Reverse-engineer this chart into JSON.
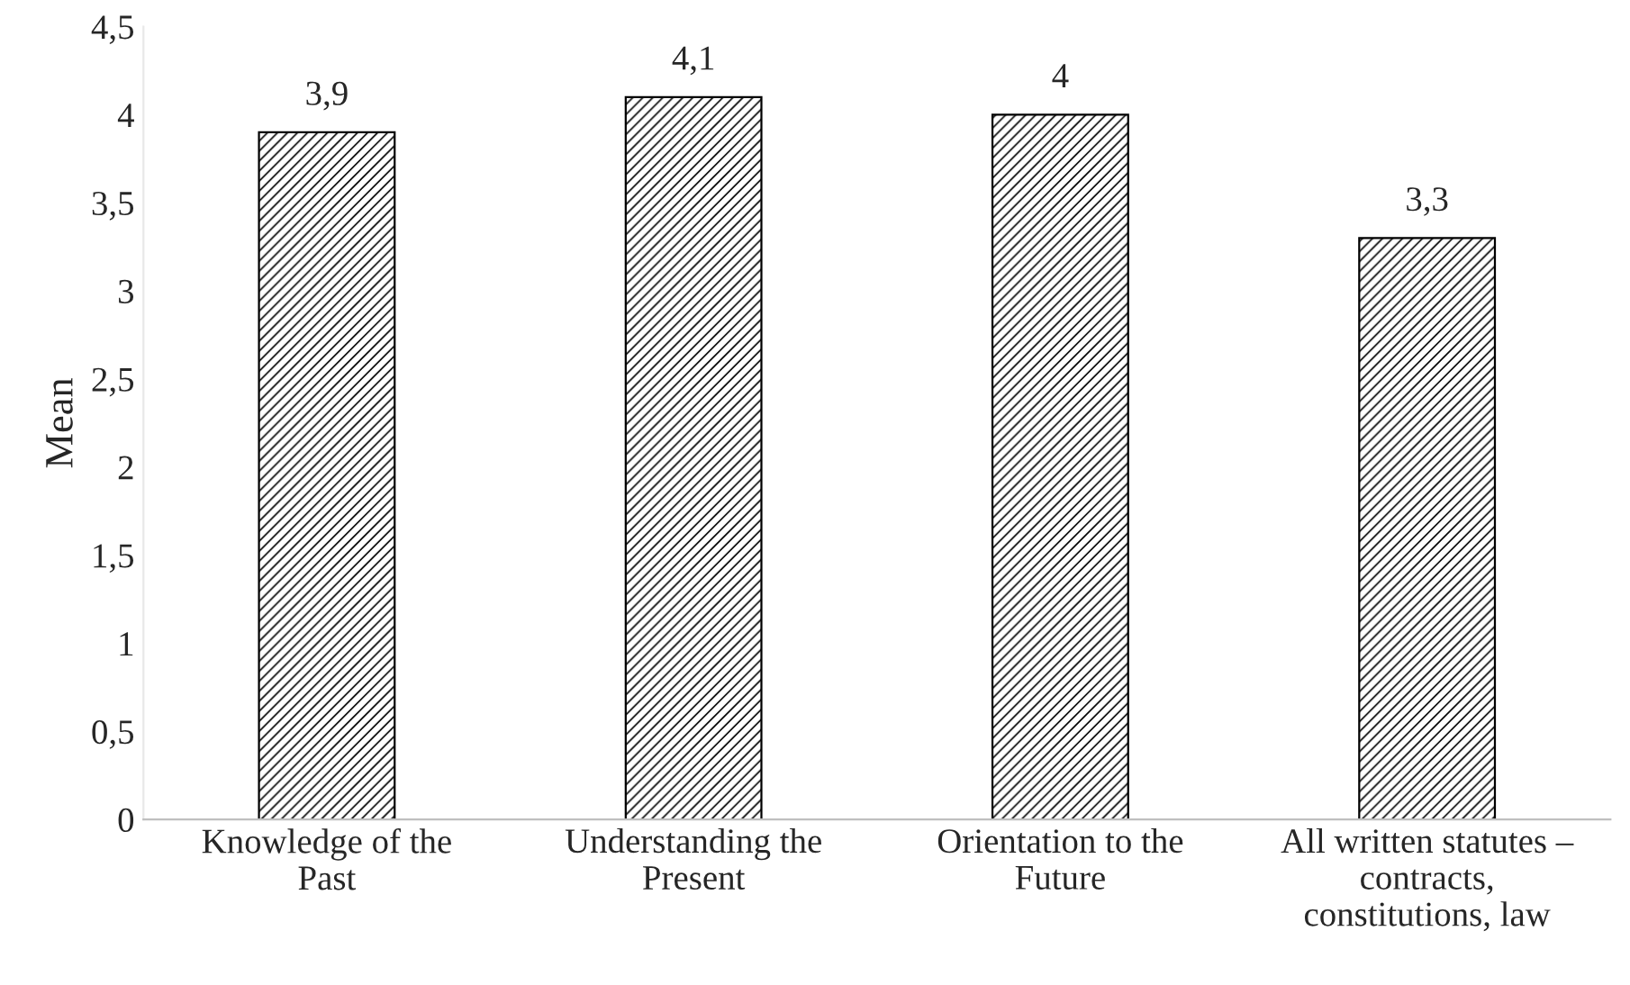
{
  "chart_data": {
    "type": "bar",
    "ylabel": "Mean",
    "categories": [
      "Knowledge of the\nPast",
      "Understanding the\nPresent",
      "Orientation to the\nFuture",
      "All written statutes –\ncontracts,\nconstitutions, law"
    ],
    "values": [
      3.9,
      4.1,
      4.0,
      3.3
    ],
    "value_labels": [
      "3,9",
      "4,1",
      "4",
      "3,3"
    ],
    "color": "#000000",
    "ylim": [
      0,
      4.5
    ],
    "yticks": [
      0,
      {
        "value": 0.5,
        "label": "0,5"
      },
      1,
      {
        "value": 1.5,
        "label": "1,5"
      },
      2,
      {
        "value": 2.5,
        "label": "2,5"
      },
      3,
      {
        "value": 3.5,
        "label": "3,5"
      },
      4,
      {
        "value": 4.5,
        "label": "4,5"
      }
    ],
    "grid": false,
    "legend": false
  }
}
